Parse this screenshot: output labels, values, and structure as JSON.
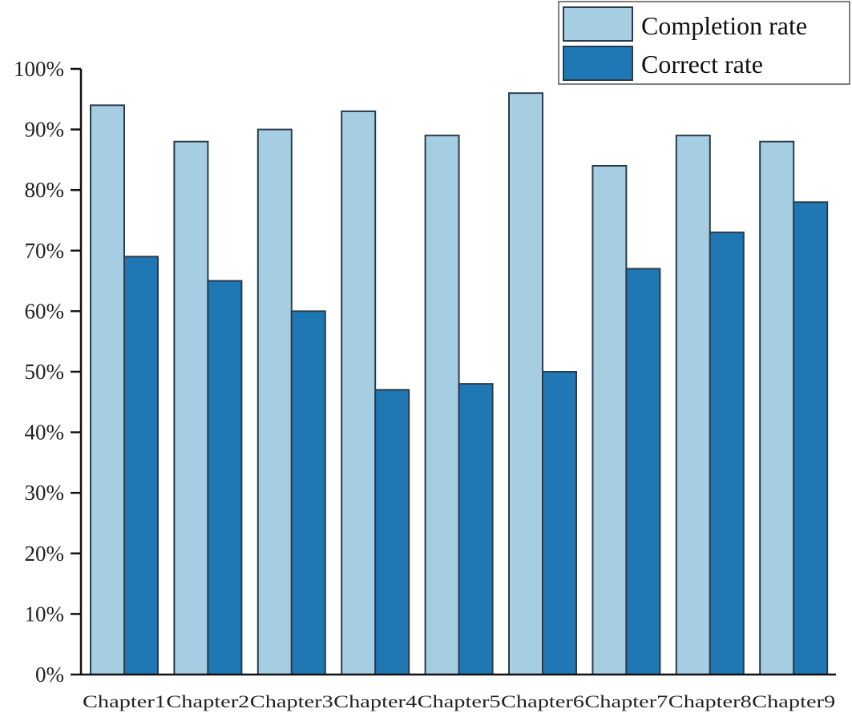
{
  "chart_data": {
    "type": "bar",
    "title": "",
    "xlabel": "",
    "ylabel": "",
    "ylim": [
      0,
      100
    ],
    "yticks": [
      "0%",
      "10%",
      "20%",
      "30%",
      "40%",
      "50%",
      "60%",
      "70%",
      "80%",
      "90%",
      "100%"
    ],
    "yunit": "%",
    "grid": false,
    "legend_position": "top-right",
    "categories": [
      "Chapter1",
      "Chapter2",
      "Chapter3",
      "Chapter4",
      "Chapter5",
      "Chapter6",
      "Chapter7",
      "Chapter8",
      "Chapter9"
    ],
    "series": [
      {
        "name": "Completion rate",
        "color": "#a6cee3",
        "values": [
          94,
          88,
          90,
          93,
          89,
          96,
          84,
          89,
          88
        ]
      },
      {
        "name": "Correct rate",
        "color": "#1f78b4",
        "values": [
          69,
          65,
          60,
          47,
          48,
          50,
          67,
          73,
          78
        ]
      }
    ]
  }
}
